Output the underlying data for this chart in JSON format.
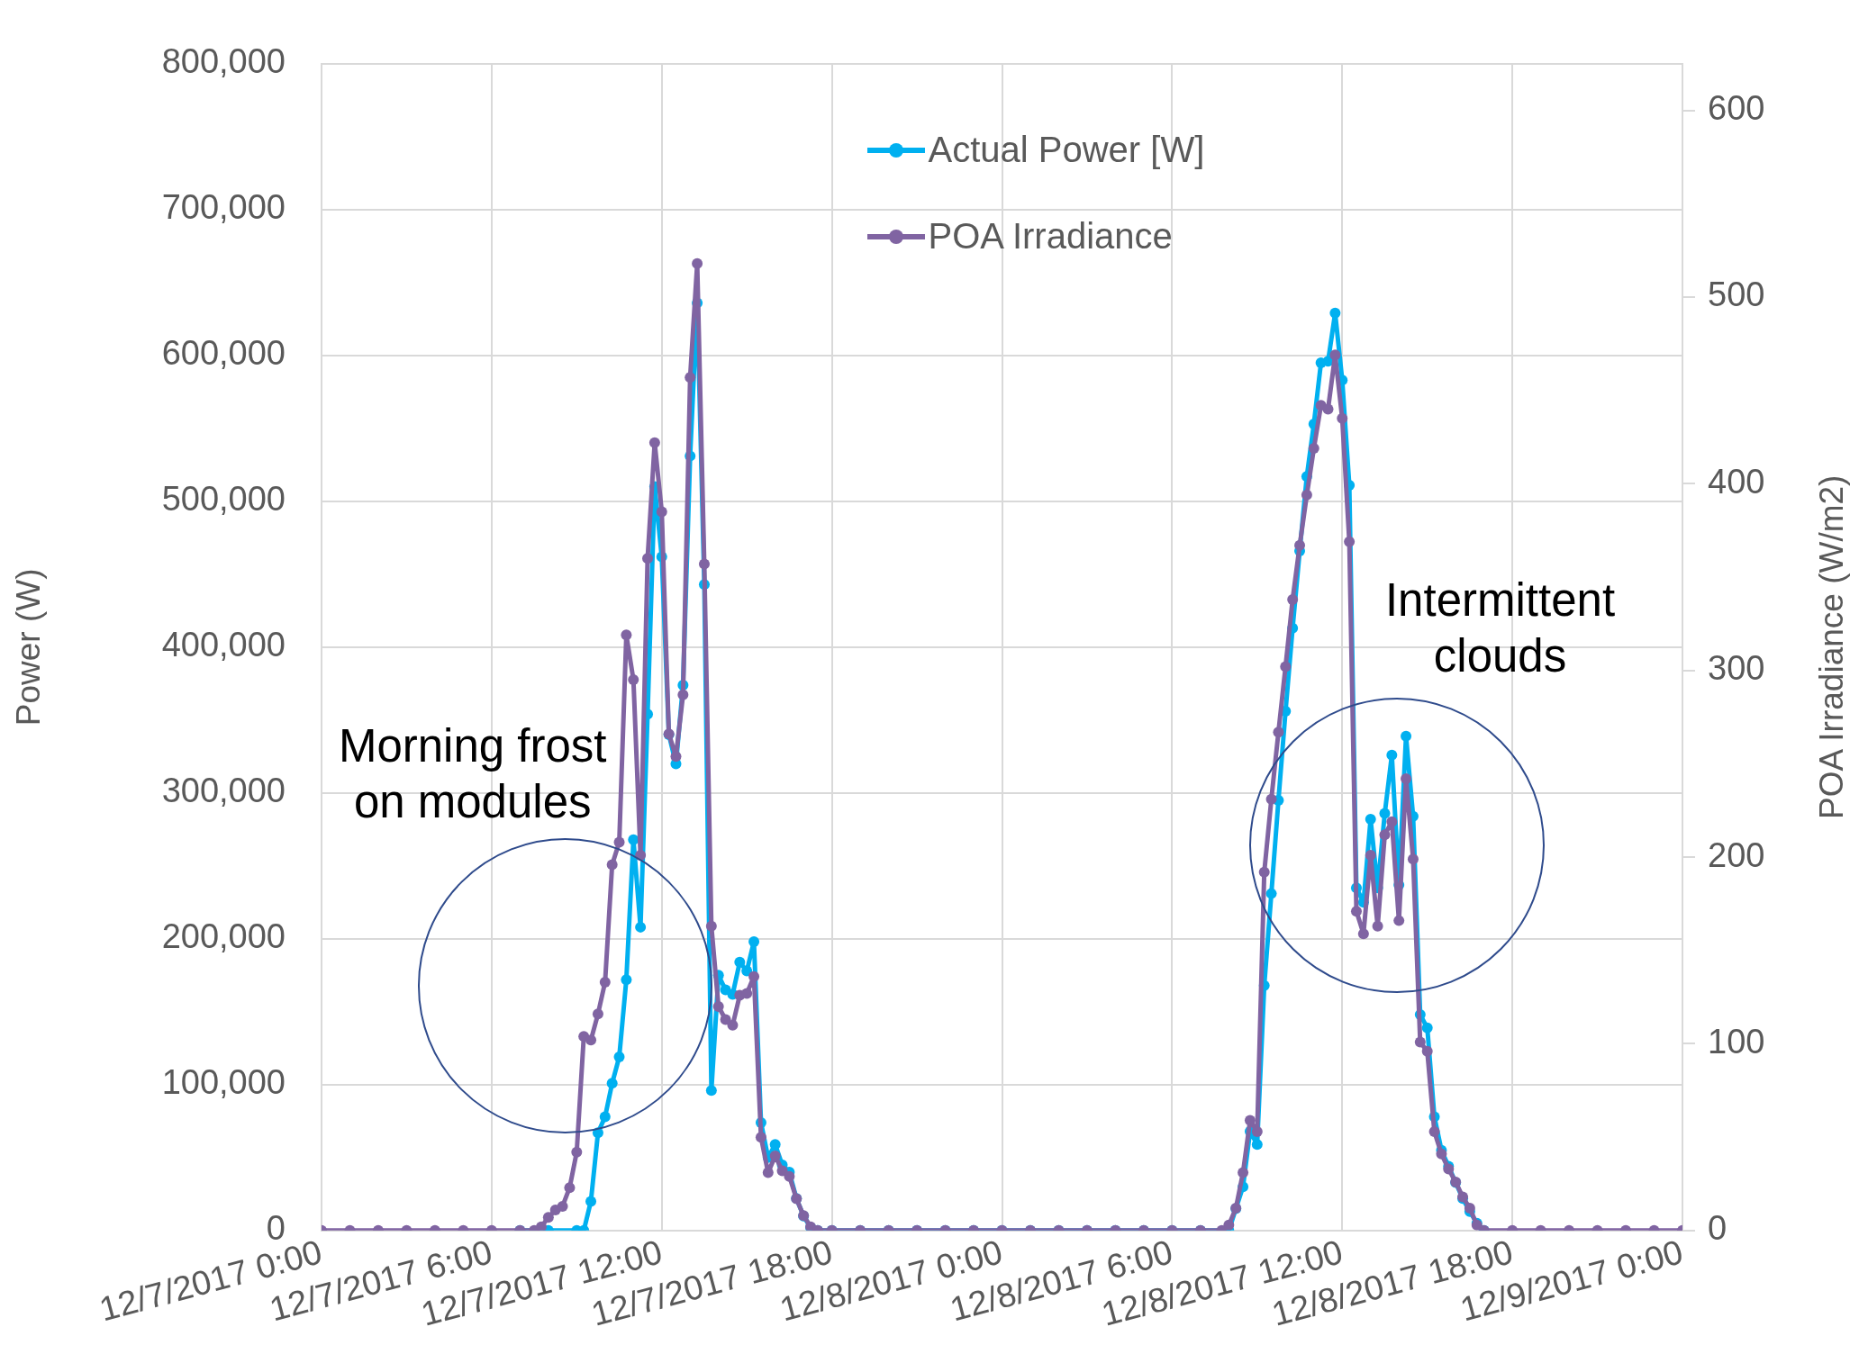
{
  "chart_data": {
    "type": "line",
    "ylabel": "Power (W)",
    "y2label": "POA Irradiance (W/m2)",
    "xlim": [
      "2017-12-07T00:00",
      "2017-12-09T00:00"
    ],
    "xticks": [
      {
        "value": "2017-12-07T00:00",
        "label": "12/7/2017 0:00"
      },
      {
        "value": "2017-12-07T06:00",
        "label": "12/7/2017 6:00"
      },
      {
        "value": "2017-12-07T12:00",
        "label": "12/7/2017 12:00"
      },
      {
        "value": "2017-12-07T18:00",
        "label": "12/7/2017 18:00"
      },
      {
        "value": "2017-12-08T00:00",
        "label": "12/8/2017 0:00"
      },
      {
        "value": "2017-12-08T06:00",
        "label": "12/8/2017 6:00"
      },
      {
        "value": "2017-12-08T12:00",
        "label": "12/8/2017 12:00"
      },
      {
        "value": "2017-12-08T18:00",
        "label": "12/8/2017 18:00"
      },
      {
        "value": "2017-12-09T00:00",
        "label": "12/9/2017 0:00"
      }
    ],
    "ylim": [
      0,
      800000
    ],
    "yticks": [
      {
        "value": 0,
        "label": "0"
      },
      {
        "value": 100000,
        "label": "100,000"
      },
      {
        "value": 200000,
        "label": "200,000"
      },
      {
        "value": 300000,
        "label": "300,000"
      },
      {
        "value": 400000,
        "label": "400,000"
      },
      {
        "value": 500000,
        "label": "500,000"
      },
      {
        "value": 600000,
        "label": "600,000"
      },
      {
        "value": 700000,
        "label": "700,000"
      },
      {
        "value": 800000,
        "label": "800,000"
      }
    ],
    "y2lim": [
      0,
      625
    ],
    "y2ticks": [
      0,
      100,
      200,
      300,
      400,
      500,
      600
    ],
    "grid": true,
    "legend": "top",
    "marker": "circle",
    "line_style": "solid",
    "annotations": [
      "Morning frost on modules",
      "Intermittent clouds"
    ],
    "series": [
      {
        "name": "Actual Power [W]",
        "color": "#00b0f0",
        "axis": "y",
        "x": [
          "2017-12-07T07:00",
          "2017-12-07T08:00",
          "2017-12-07T09:00",
          "2017-12-07T09:15",
          "2017-12-07T09:30",
          "2017-12-07T09:45",
          "2017-12-07T10:00",
          "2017-12-07T10:15",
          "2017-12-07T10:30",
          "2017-12-07T10:45",
          "2017-12-07T11:00",
          "2017-12-07T11:15",
          "2017-12-07T11:30",
          "2017-12-07T11:45",
          "2017-12-07T12:00",
          "2017-12-07T12:15",
          "2017-12-07T12:30",
          "2017-12-07T12:45",
          "2017-12-07T13:00",
          "2017-12-07T13:15",
          "2017-12-07T13:30",
          "2017-12-07T13:45",
          "2017-12-07T14:00",
          "2017-12-07T14:15",
          "2017-12-07T14:30",
          "2017-12-07T14:45",
          "2017-12-07T15:00",
          "2017-12-07T15:15",
          "2017-12-07T15:30",
          "2017-12-07T15:45",
          "2017-12-07T16:00",
          "2017-12-07T16:15",
          "2017-12-07T16:30",
          "2017-12-07T16:45",
          "2017-12-07T17:00",
          "2017-12-07T17:15",
          "2017-12-07T17:30",
          "2017-12-07T18:00",
          "2017-12-07T19:00",
          "2017-12-07T20:00",
          "2017-12-07T21:00",
          "2017-12-07T22:00",
          "2017-12-07T23:00",
          "2017-12-08T00:00",
          "2017-12-08T01:00",
          "2017-12-08T02:00",
          "2017-12-08T03:00",
          "2017-12-08T04:00",
          "2017-12-08T05:00",
          "2017-12-08T06:00",
          "2017-12-08T07:00",
          "2017-12-08T08:00",
          "2017-12-08T08:15",
          "2017-12-08T08:30",
          "2017-12-08T08:45",
          "2017-12-08T09:00",
          "2017-12-08T09:15",
          "2017-12-08T09:30",
          "2017-12-08T09:45",
          "2017-12-08T10:00",
          "2017-12-08T10:15",
          "2017-12-08T10:30",
          "2017-12-08T10:45",
          "2017-12-08T11:00",
          "2017-12-08T11:15",
          "2017-12-08T11:30",
          "2017-12-08T11:45",
          "2017-12-08T12:00",
          "2017-12-08T12:15",
          "2017-12-08T12:30",
          "2017-12-08T12:45",
          "2017-12-08T13:00",
          "2017-12-08T13:15",
          "2017-12-08T13:30",
          "2017-12-08T13:45",
          "2017-12-08T14:00",
          "2017-12-08T14:15",
          "2017-12-08T14:30",
          "2017-12-08T14:45",
          "2017-12-08T15:00",
          "2017-12-08T15:15",
          "2017-12-08T15:30",
          "2017-12-08T15:45",
          "2017-12-08T16:00",
          "2017-12-08T16:15",
          "2017-12-08T16:30",
          "2017-12-08T16:45",
          "2017-12-08T17:00"
        ],
        "values": [
          0,
          0,
          0,
          0,
          20000,
          67000,
          78000,
          101000,
          119000,
          172000,
          268000,
          208000,
          354000,
          510000,
          462000,
          340000,
          320000,
          374000,
          531000,
          636000,
          443000,
          96000,
          175000,
          165000,
          162000,
          184000,
          178000,
          198000,
          74000,
          50000,
          59000,
          45000,
          40000,
          22000,
          10000,
          2000,
          0,
          0,
          0,
          0,
          0,
          0,
          0,
          0,
          0,
          0,
          0,
          0,
          0,
          0,
          0,
          0,
          15000,
          30000,
          68000,
          59000,
          168000,
          231000,
          295000,
          356000,
          413000,
          466000,
          517000,
          553000,
          595000,
          596000,
          629000,
          583000,
          511000,
          235000,
          225000,
          282000,
          235000,
          286000,
          326000,
          237000,
          339000,
          284000,
          148000,
          139000,
          78000,
          55000,
          44000,
          33000,
          22000,
          13000,
          5000,
          0
        ]
      },
      {
        "name": "POA Irradiance",
        "color": "#8064a2",
        "axis": "y2",
        "x": [
          "2017-12-07T00:00",
          "2017-12-07T01:00",
          "2017-12-07T02:00",
          "2017-12-07T03:00",
          "2017-12-07T04:00",
          "2017-12-07T05:00",
          "2017-12-07T06:00",
          "2017-12-07T07:00",
          "2017-12-07T07:30",
          "2017-12-07T07:45",
          "2017-12-07T08:00",
          "2017-12-07T08:15",
          "2017-12-07T08:30",
          "2017-12-07T08:45",
          "2017-12-07T09:00",
          "2017-12-07T09:15",
          "2017-12-07T09:30",
          "2017-12-07T09:45",
          "2017-12-07T10:00",
          "2017-12-07T10:15",
          "2017-12-07T10:30",
          "2017-12-07T10:45",
          "2017-12-07T11:00",
          "2017-12-07T11:15",
          "2017-12-07T11:30",
          "2017-12-07T11:45",
          "2017-12-07T12:00",
          "2017-12-07T12:15",
          "2017-12-07T12:30",
          "2017-12-07T12:45",
          "2017-12-07T13:00",
          "2017-12-07T13:15",
          "2017-12-07T13:30",
          "2017-12-07T13:45",
          "2017-12-07T14:00",
          "2017-12-07T14:15",
          "2017-12-07T14:30",
          "2017-12-07T14:45",
          "2017-12-07T15:00",
          "2017-12-07T15:15",
          "2017-12-07T15:30",
          "2017-12-07T15:45",
          "2017-12-07T16:00",
          "2017-12-07T16:15",
          "2017-12-07T16:30",
          "2017-12-07T16:45",
          "2017-12-07T17:00",
          "2017-12-07T17:15",
          "2017-12-07T17:30",
          "2017-12-07T18:00",
          "2017-12-07T19:00",
          "2017-12-07T20:00",
          "2017-12-07T21:00",
          "2017-12-07T22:00",
          "2017-12-07T23:00",
          "2017-12-08T00:00",
          "2017-12-08T01:00",
          "2017-12-08T02:00",
          "2017-12-08T03:00",
          "2017-12-08T04:00",
          "2017-12-08T05:00",
          "2017-12-08T06:00",
          "2017-12-08T07:00",
          "2017-12-08T07:45",
          "2017-12-08T08:00",
          "2017-12-08T08:15",
          "2017-12-08T08:30",
          "2017-12-08T08:45",
          "2017-12-08T09:00",
          "2017-12-08T09:15",
          "2017-12-08T09:30",
          "2017-12-08T09:45",
          "2017-12-08T10:00",
          "2017-12-08T10:15",
          "2017-12-08T10:30",
          "2017-12-08T10:45",
          "2017-12-08T11:00",
          "2017-12-08T11:15",
          "2017-12-08T11:30",
          "2017-12-08T11:45",
          "2017-12-08T12:00",
          "2017-12-08T12:15",
          "2017-12-08T12:30",
          "2017-12-08T12:45",
          "2017-12-08T13:00",
          "2017-12-08T13:15",
          "2017-12-08T13:30",
          "2017-12-08T13:45",
          "2017-12-08T14:00",
          "2017-12-08T14:15",
          "2017-12-08T14:30",
          "2017-12-08T14:45",
          "2017-12-08T15:00",
          "2017-12-08T15:15",
          "2017-12-08T15:30",
          "2017-12-08T15:45",
          "2017-12-08T16:00",
          "2017-12-08T16:15",
          "2017-12-08T16:30",
          "2017-12-08T16:45",
          "2017-12-08T17:00",
          "2017-12-08T18:00",
          "2017-12-08T19:00",
          "2017-12-08T20:00",
          "2017-12-08T21:00",
          "2017-12-08T22:00",
          "2017-12-08T23:00",
          "2017-12-09T00:00"
        ],
        "values": [
          0,
          0,
          0,
          0,
          0,
          0,
          0,
          0,
          0,
          2,
          7,
          11,
          13,
          23,
          42,
          104,
          102,
          116,
          133,
          196,
          208,
          319,
          295,
          201,
          360,
          422,
          385,
          266,
          254,
          287,
          457,
          518,
          357,
          163,
          120,
          113,
          110,
          126,
          127,
          136,
          50,
          31,
          40,
          32,
          29,
          17,
          8,
          2,
          0,
          0,
          0,
          0,
          0,
          0,
          0,
          0,
          0,
          0,
          0,
          0,
          0,
          0,
          0,
          0,
          3,
          12,
          31,
          59,
          53,
          192,
          231,
          267,
          302,
          338,
          367,
          394,
          419,
          442,
          440,
          469,
          435,
          369,
          171,
          159,
          201,
          163,
          212,
          219,
          166,
          242,
          199,
          101,
          96,
          53,
          41,
          33,
          26,
          18,
          12,
          3,
          0,
          0,
          0,
          0,
          0,
          0,
          0,
          0
        ]
      }
    ]
  }
}
